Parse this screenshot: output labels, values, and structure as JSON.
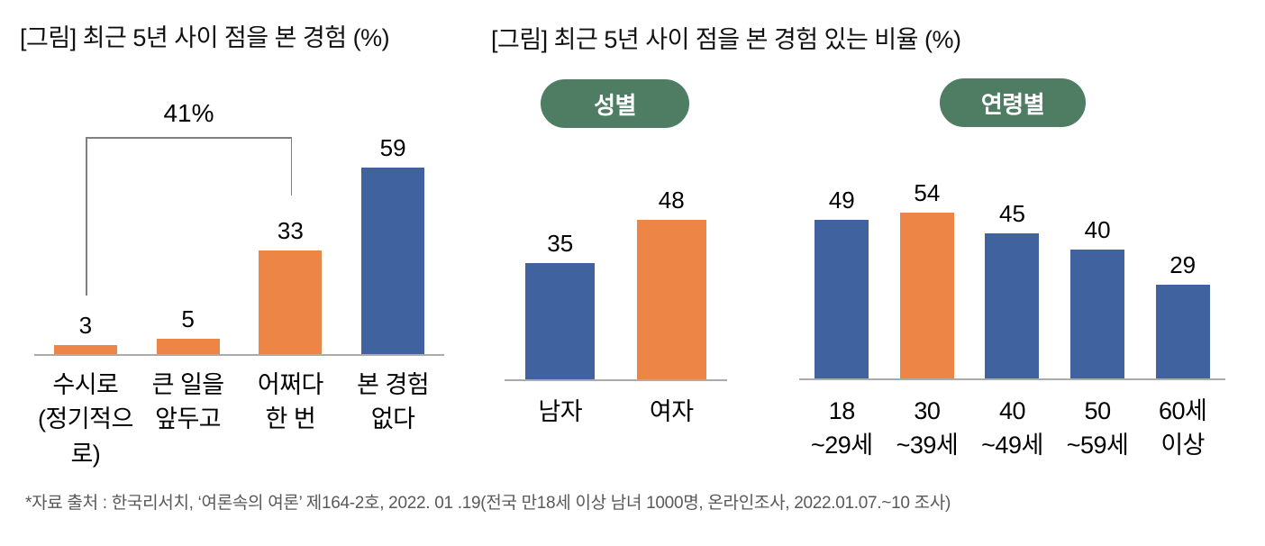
{
  "left_chart": {
    "title": "[그림] 최근 5년 사이 점을 본 경험 (%)",
    "bracket_label": "41%"
  },
  "right_section": {
    "title": "[그림] 최근 5년 사이 점을 본 경험 있는 비율 (%)",
    "gender_badge": "성별",
    "age_badge": "연령별"
  },
  "footer": {
    "source": "*자료 출처 : 한국리서치, ‘여론속의 여론’ 제164-2호, 2022. 01 .19(전국 만18세 이상 남녀 1000명, 온라인조사, 2022.01.07.~10 조사)"
  },
  "colors": {
    "orange": "#ED8546",
    "blue": "#40629E",
    "green": "#4E7D64",
    "axis_gray": "#ABABAB",
    "bracket_gray": "#7F7F7F",
    "footer_gray": "#595959"
  },
  "chart_data": [
    {
      "id": "experience",
      "type": "bar",
      "title": "[그림] 최근 5년 사이 점을 본 경험 (%)",
      "categories": [
        "수시로\n(정기적으로)",
        "큰 일을\n앞두고",
        "어쩌다\n한 번",
        "본 경험\n없다"
      ],
      "values": [
        3,
        5,
        33,
        59
      ],
      "bar_colors": [
        "orange",
        "orange",
        "orange",
        "blue"
      ],
      "annotation": {
        "label": "41%",
        "spans_categories": [
          0,
          2
        ],
        "meaning": "sum of first three bars (saw fortune at least once)"
      },
      "ylim": [
        0,
        65
      ],
      "grid": false,
      "legend": "none"
    },
    {
      "id": "gender",
      "type": "bar",
      "group_label": "성별",
      "categories": [
        "남자",
        "여자"
      ],
      "values": [
        35,
        48
      ],
      "bar_colors": [
        "blue",
        "orange"
      ],
      "ylim": [
        0,
        60
      ],
      "grid": false,
      "legend": "none"
    },
    {
      "id": "age",
      "type": "bar",
      "group_label": "연령별",
      "categories": [
        "18\n~29세",
        "30\n~39세",
        "40\n~49세",
        "50\n~59세",
        "60세\n이상"
      ],
      "values": [
        49,
        54,
        45,
        40,
        29
      ],
      "bar_colors": [
        "blue",
        "orange",
        "blue",
        "blue",
        "blue"
      ],
      "ylim": [
        0,
        60
      ],
      "grid": false,
      "legend": "none"
    }
  ]
}
